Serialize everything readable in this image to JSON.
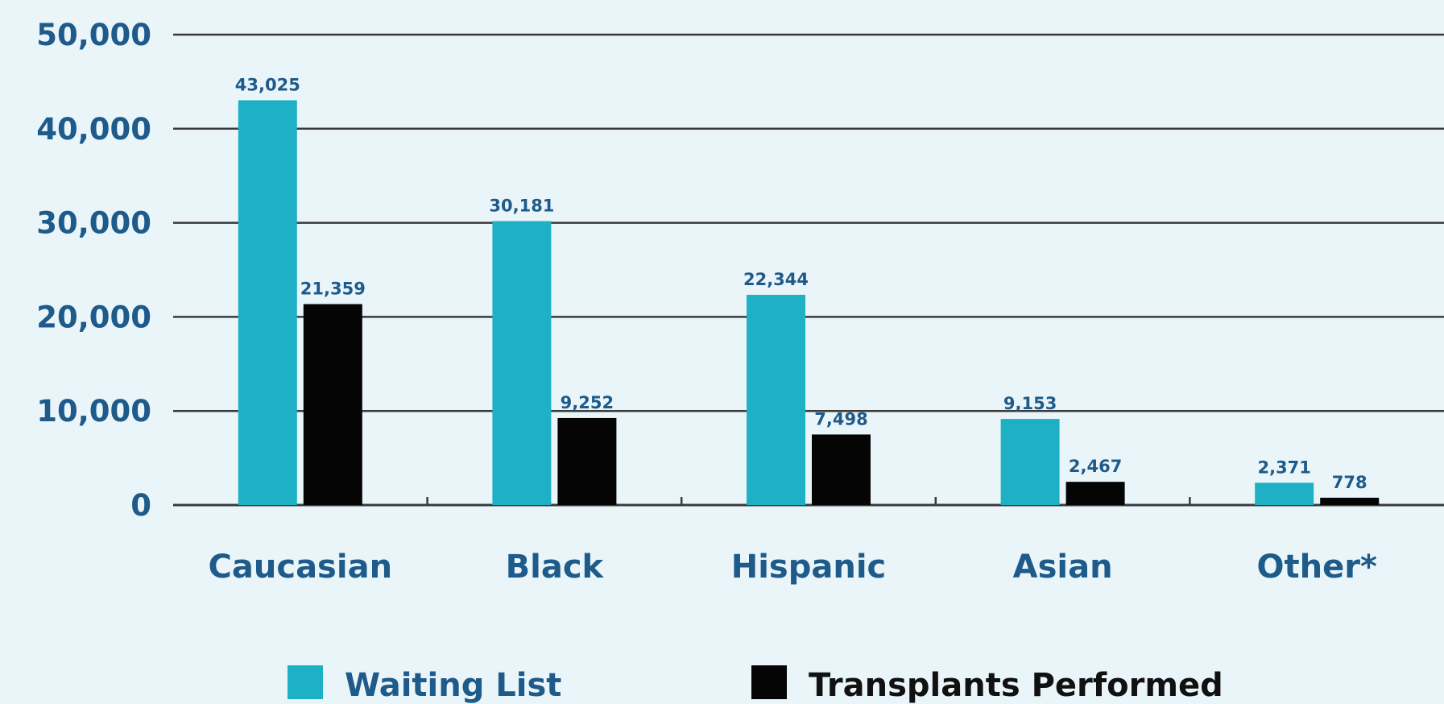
{
  "chart_data": {
    "type": "bar",
    "categories": [
      "Caucasian",
      "Black",
      "Hispanic",
      "Asian",
      "Other*"
    ],
    "series": [
      {
        "name": "Waiting List",
        "values": [
          43025,
          30181,
          22344,
          9153,
          2371
        ],
        "labels": [
          "43,025",
          "30,181",
          "22,344",
          "9,153",
          "2,371"
        ],
        "color": "#1eb1c5"
      },
      {
        "name": "Transplants Performed",
        "values": [
          21359,
          9252,
          7498,
          2467,
          778
        ],
        "labels": [
          "21,359",
          "9,252",
          "7,498",
          "2,467",
          "778"
        ],
        "color": "#050505"
      }
    ],
    "yticks": [
      "0",
      "10,000",
      "20,000",
      "30,000",
      "40,000",
      "50,000"
    ],
    "ylim": [
      0,
      50000
    ],
    "grid": true,
    "legend_position": "bottom"
  },
  "colors": {
    "background": "#eaf5f9",
    "text": "#1e5a8a",
    "waiting": "#1eb1c5",
    "transplants": "#050505",
    "grid": "#3a3a3a"
  }
}
